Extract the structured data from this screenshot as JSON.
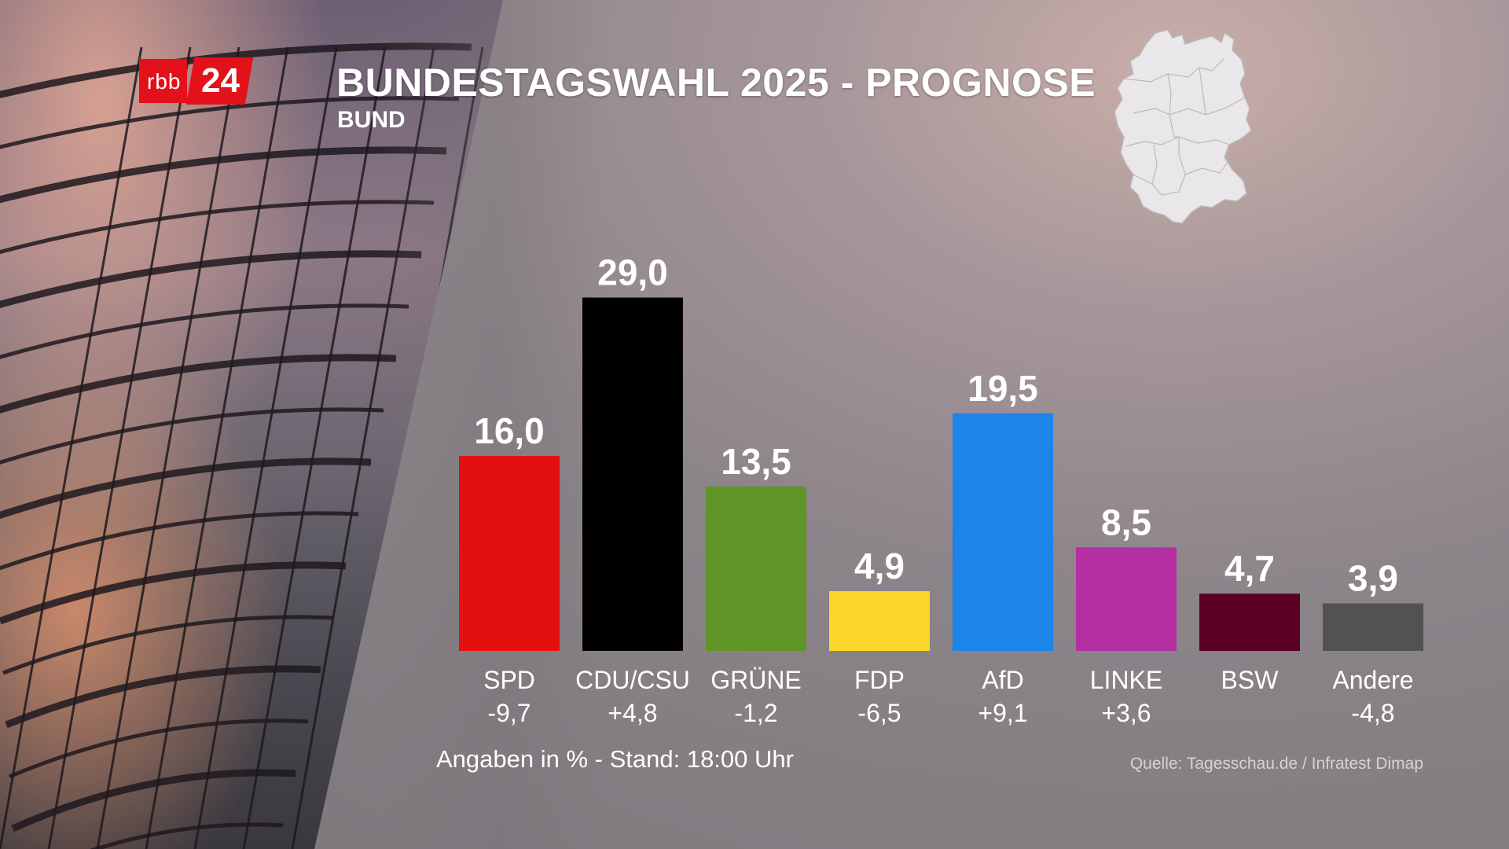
{
  "header": {
    "logo_text": "rbb",
    "logo_number": "24",
    "title": "BUNDESTAGSWAHL 2025 - PROGNOSE",
    "subtitle": "BUND"
  },
  "footer": {
    "note": "Angaben in % - Stand: 18:00 Uhr",
    "source": "Quelle: Tagesschau.de / Infratest Dimap"
  },
  "icons": {
    "logo": "rbb24-logo",
    "map": "germany-map-icon"
  },
  "chart_data": {
    "type": "bar",
    "title": "BUNDESTAGSWAHL 2025 - PROGNOSE",
    "subtitle": "BUND",
    "categories": [
      "SPD",
      "CDU/CSU",
      "GRÜNE",
      "FDP",
      "AfD",
      "LINKE",
      "BSW",
      "Andere"
    ],
    "values": [
      16.0,
      29.0,
      13.5,
      4.9,
      19.5,
      8.5,
      4.7,
      3.9
    ],
    "value_labels": [
      "16,0",
      "29,0",
      "13,5",
      "4,9",
      "19,5",
      "8,5",
      "4,7",
      "3,9"
    ],
    "changes": [
      "-9,7",
      "+4,8",
      "-1,2",
      "-6,5",
      "+9,1",
      "+3,6",
      "",
      "-4,8"
    ],
    "colors": [
      "#e3100f",
      "#000000",
      "#5f9627",
      "#fdd62a",
      "#1d84e9",
      "#b32fa2",
      "#5a0123",
      "#525252"
    ],
    "unit": "%",
    "ylim": [
      0,
      30
    ],
    "grid": false,
    "legend": "none"
  }
}
